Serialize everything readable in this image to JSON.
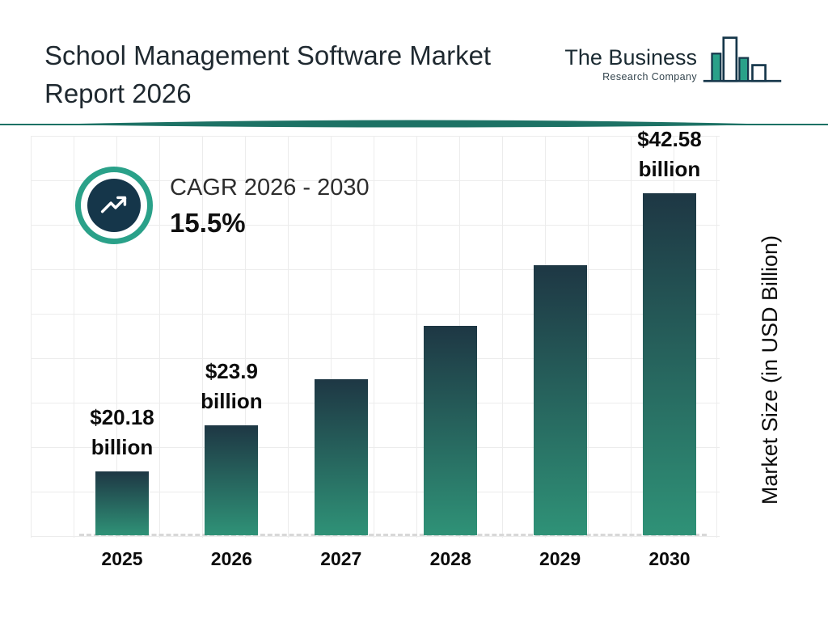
{
  "header": {
    "title_line1": "School Management Software Market",
    "title_line2": "Report 2026",
    "logo": {
      "name": "The Business",
      "subname": "Research Company"
    }
  },
  "cagr": {
    "label": "CAGR 2026 - 2030",
    "value": "15.5%"
  },
  "chart_data": {
    "type": "bar",
    "title": "School Management Software Market Report 2026",
    "categories": [
      "2025",
      "2026",
      "2027",
      "2028",
      "2029",
      "2030"
    ],
    "values": [
      20.18,
      23.9,
      27.6,
      31.9,
      36.8,
      42.58
    ],
    "data_labels": [
      "$20.18\nbillion",
      "$23.9\nbillion",
      null,
      null,
      null,
      "$42.58\nbillion"
    ],
    "xlabel": "",
    "ylabel": "Market Size (in USD Billion)",
    "ylim": [
      15,
      45
    ],
    "grid": true,
    "legend": "none",
    "bar_gradient_top": "#1e3744",
    "bar_gradient_bottom": "#2f9277"
  },
  "colors": {
    "accent_teal": "#2aa189",
    "dark_navy": "#15364a",
    "divider_teal": "#1d7265",
    "title_text": "#1f2930"
  }
}
